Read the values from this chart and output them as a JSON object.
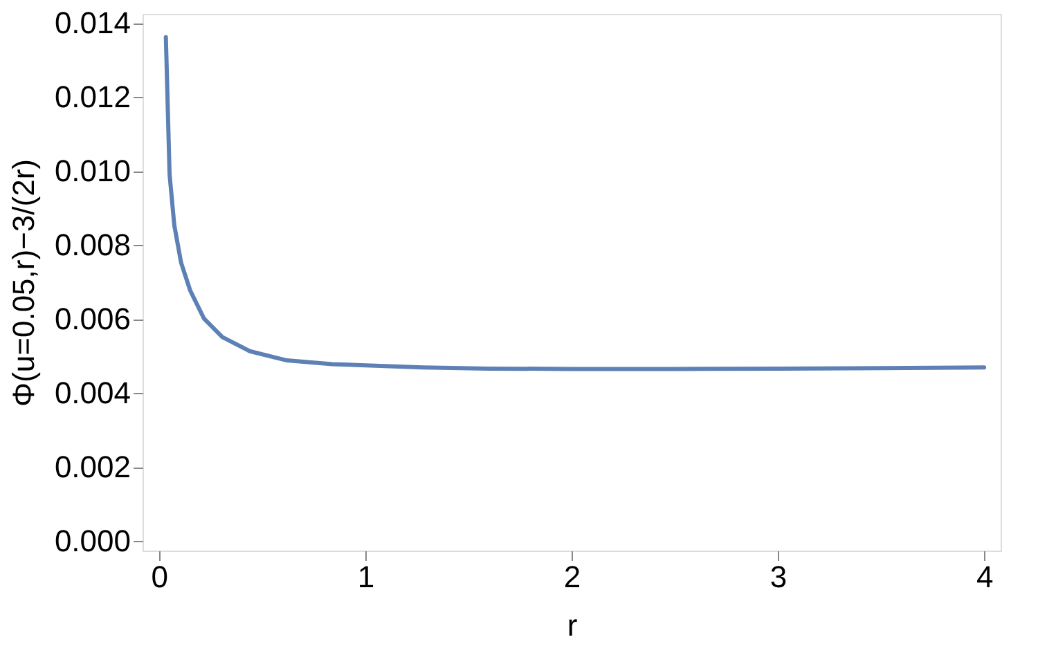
{
  "chart_data": {
    "type": "line",
    "xlabel": "r",
    "ylabel": "Φ(u=0.05,r)−3/(2r)",
    "x": [
      0.033,
      0.051,
      0.074,
      0.107,
      0.151,
      0.218,
      0.307,
      0.44,
      0.62,
      0.84,
      1.28,
      1.6,
      2.0,
      2.5,
      3.0,
      3.5,
      4.0
    ],
    "series": [
      {
        "color": "#5e81b5",
        "values": [
          0.01362,
          0.00991,
          0.00853,
          0.00752,
          0.00677,
          0.00601,
          0.00551,
          0.00513,
          0.00488,
          0.00478,
          0.00469,
          0.00466,
          0.00465,
          0.00465,
          0.00466,
          0.00467,
          0.00469
        ]
      }
    ],
    "xlim": [
      -0.08,
      4.08
    ],
    "ylim": [
      -0.00026,
      0.01425
    ],
    "xticks": [
      0,
      1,
      2,
      3,
      4
    ],
    "yticks": [
      {
        "value": 0,
        "label": "0.000"
      },
      {
        "value": 0.002,
        "label": "0.002"
      },
      {
        "value": 0.004,
        "label": "0.004"
      },
      {
        "value": 0.006,
        "label": "0.006"
      },
      {
        "value": 0.008,
        "label": "0.008"
      },
      {
        "value": 0.01,
        "label": "0.010"
      },
      {
        "value": 0.012,
        "label": "0.012"
      },
      {
        "value": 0.014,
        "label": "0.014"
      }
    ],
    "grid": false,
    "legend": false,
    "marker": "none",
    "line_style": "solid"
  }
}
